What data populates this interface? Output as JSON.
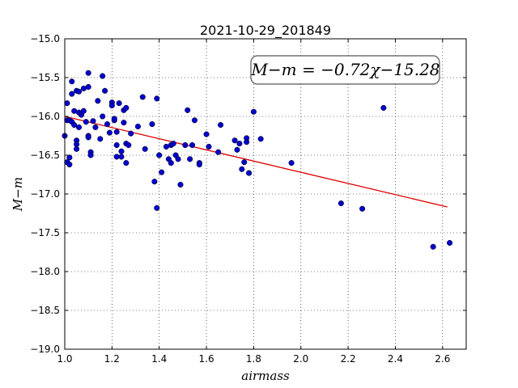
{
  "chart_data": {
    "type": "scatter",
    "title": "2021-10-29_201849",
    "xlabel": "airmass",
    "ylabel": "M−m",
    "xlim": [
      1.0,
      2.7
    ],
    "ylim": [
      -19.0,
      -15.0
    ],
    "x_ticks": [
      "1.0",
      "1.2",
      "1.4",
      "1.6",
      "1.8",
      "2.0",
      "2.2",
      "2.4",
      "2.6"
    ],
    "y_ticks": [
      "−15.0",
      "−15.5",
      "−16.0",
      "−16.5",
      "−17.0",
      "−17.5",
      "−18.0",
      "−18.5",
      "−19.0"
    ],
    "grid": true,
    "annotation": "M−m = −0.72χ−15.28",
    "fit": {
      "slope": -0.72,
      "intercept": -15.28,
      "x_range": [
        1.0,
        2.62
      ],
      "color": "#dd0000"
    },
    "point_color": "#0000cc",
    "points": [
      [
        1.0,
        -16.25
      ],
      [
        1.01,
        -15.83
      ],
      [
        1.01,
        -16.05
      ],
      [
        1.01,
        -16.59
      ],
      [
        1.02,
        -16.53
      ],
      [
        1.02,
        -16.05
      ],
      [
        1.02,
        -16.62
      ],
      [
        1.03,
        -15.55
      ],
      [
        1.03,
        -15.71
      ],
      [
        1.03,
        -16.07
      ],
      [
        1.04,
        -16.11
      ],
      [
        1.04,
        -15.93
      ],
      [
        1.05,
        -15.67
      ],
      [
        1.05,
        -16.31
      ],
      [
        1.05,
        -16.36
      ],
      [
        1.05,
        -16.42
      ],
      [
        1.06,
        -15.68
      ],
      [
        1.06,
        -15.95
      ],
      [
        1.06,
        -16.14
      ],
      [
        1.07,
        -15.98
      ],
      [
        1.08,
        -15.64
      ],
      [
        1.08,
        -15.93
      ],
      [
        1.09,
        -16.07
      ],
      [
        1.1,
        -15.44
      ],
      [
        1.1,
        -15.62
      ],
      [
        1.1,
        -16.25
      ],
      [
        1.1,
        -16.27
      ],
      [
        1.11,
        -16.46
      ],
      [
        1.11,
        -16.5
      ],
      [
        1.12,
        -16.06
      ],
      [
        1.13,
        -16.14
      ],
      [
        1.14,
        -15.8
      ],
      [
        1.15,
        -16.29
      ],
      [
        1.16,
        -16.0
      ],
      [
        1.16,
        -15.48
      ],
      [
        1.17,
        -15.67
      ],
      [
        1.18,
        -16.1
      ],
      [
        1.19,
        -16.21
      ],
      [
        1.2,
        -15.82
      ],
      [
        1.2,
        -15.86
      ],
      [
        1.21,
        -16.05
      ],
      [
        1.21,
        -16.03
      ],
      [
        1.22,
        -16.2
      ],
      [
        1.22,
        -16.37
      ],
      [
        1.22,
        -16.52
      ],
      [
        1.23,
        -15.83
      ],
      [
        1.24,
        -16.45
      ],
      [
        1.24,
        -16.52
      ],
      [
        1.25,
        -16.08
      ],
      [
        1.25,
        -15.92
      ],
      [
        1.26,
        -15.89
      ],
      [
        1.26,
        -16.35
      ],
      [
        1.26,
        -16.6
      ],
      [
        1.27,
        -16.37
      ],
      [
        1.28,
        -16.22
      ],
      [
        1.31,
        -16.13
      ],
      [
        1.33,
        -15.75
      ],
      [
        1.34,
        -16.42
      ],
      [
        1.37,
        -16.1
      ],
      [
        1.38,
        -16.84
      ],
      [
        1.39,
        -15.77
      ],
      [
        1.39,
        -17.18
      ],
      [
        1.4,
        -16.5
      ],
      [
        1.41,
        -16.72
      ],
      [
        1.43,
        -16.39
      ],
      [
        1.44,
        -16.55
      ],
      [
        1.45,
        -16.6
      ],
      [
        1.45,
        -16.37
      ],
      [
        1.46,
        -16.35
      ],
      [
        1.47,
        -16.5
      ],
      [
        1.48,
        -16.55
      ],
      [
        1.49,
        -16.88
      ],
      [
        1.51,
        -16.37
      ],
      [
        1.52,
        -15.92
      ],
      [
        1.53,
        -16.55
      ],
      [
        1.54,
        -16.37
      ],
      [
        1.55,
        -16.05
      ],
      [
        1.57,
        -16.6
      ],
      [
        1.57,
        -16.62
      ],
      [
        1.6,
        -16.23
      ],
      [
        1.61,
        -16.39
      ],
      [
        1.65,
        -16.46
      ],
      [
        1.66,
        -16.11
      ],
      [
        1.72,
        -16.31
      ],
      [
        1.73,
        -16.43
      ],
      [
        1.74,
        -16.35
      ],
      [
        1.75,
        -16.68
      ],
      [
        1.76,
        -16.59
      ],
      [
        1.77,
        -16.28
      ],
      [
        1.77,
        -16.33
      ],
      [
        1.78,
        -16.73
      ],
      [
        1.8,
        -15.94
      ],
      [
        1.83,
        -16.29
      ],
      [
        1.96,
        -16.6
      ],
      [
        2.17,
        -17.12
      ],
      [
        2.26,
        -17.19
      ],
      [
        2.35,
        -15.89
      ],
      [
        2.56,
        -17.68
      ],
      [
        2.63,
        -17.63
      ]
    ]
  }
}
